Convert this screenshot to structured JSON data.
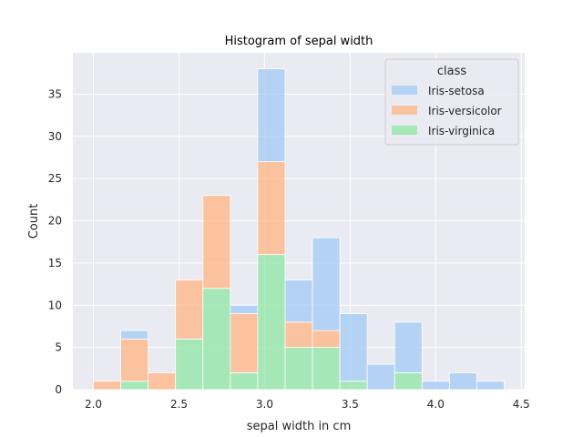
{
  "chart_data": {
    "type": "bar",
    "subtype": "stacked-histogram",
    "title": "Histogram of sepal width",
    "xlabel": "sepal width in cm",
    "ylabel": "Count",
    "xlim": [
      1.88,
      4.52
    ],
    "ylim": [
      0,
      39.9
    ],
    "xticks": [
      2.0,
      2.5,
      3.0,
      3.5,
      4.0,
      4.5
    ],
    "xtick_labels": [
      "2.0",
      "2.5",
      "3.0",
      "3.5",
      "4.0",
      "4.5"
    ],
    "yticks": [
      0,
      5,
      10,
      15,
      20,
      25,
      30,
      35
    ],
    "ytick_labels": [
      "0",
      "5",
      "10",
      "15",
      "20",
      "25",
      "30",
      "35"
    ],
    "grid": true,
    "legend": {
      "title": "class",
      "placement": "top-right"
    },
    "bins": [
      [
        2.0,
        2.16
      ],
      [
        2.16,
        2.32
      ],
      [
        2.32,
        2.48
      ],
      [
        2.48,
        2.64
      ],
      [
        2.64,
        2.8
      ],
      [
        2.8,
        2.96
      ],
      [
        2.96,
        3.12
      ],
      [
        3.12,
        3.28
      ],
      [
        3.28,
        3.44
      ],
      [
        3.44,
        3.6
      ],
      [
        3.6,
        3.76
      ],
      [
        3.76,
        3.92
      ],
      [
        3.92,
        4.08
      ],
      [
        4.08,
        4.24
      ],
      [
        4.24,
        4.4
      ]
    ],
    "series": [
      {
        "name": "Iris-setosa",
        "color": "#a1c9f4",
        "values": [
          0,
          1,
          0,
          0,
          0,
          1,
          11,
          5,
          11,
          8,
          3,
          6,
          1,
          2,
          1
        ]
      },
      {
        "name": "Iris-versicolor",
        "color": "#ffb482",
        "values": [
          1,
          5,
          2,
          7,
          11,
          7,
          11,
          3,
          2,
          0,
          0,
          0,
          0,
          0,
          0
        ]
      },
      {
        "name": "Iris-virginica",
        "color": "#8de5a1",
        "values": [
          0,
          1,
          0,
          6,
          12,
          2,
          16,
          5,
          5,
          1,
          0,
          2,
          0,
          0,
          0
        ]
      }
    ],
    "stack_order_bottom_to_top": [
      "Iris-virginica",
      "Iris-versicolor",
      "Iris-setosa"
    ],
    "background_color": "#eaeaf2",
    "grid_color": "#ffffff"
  }
}
